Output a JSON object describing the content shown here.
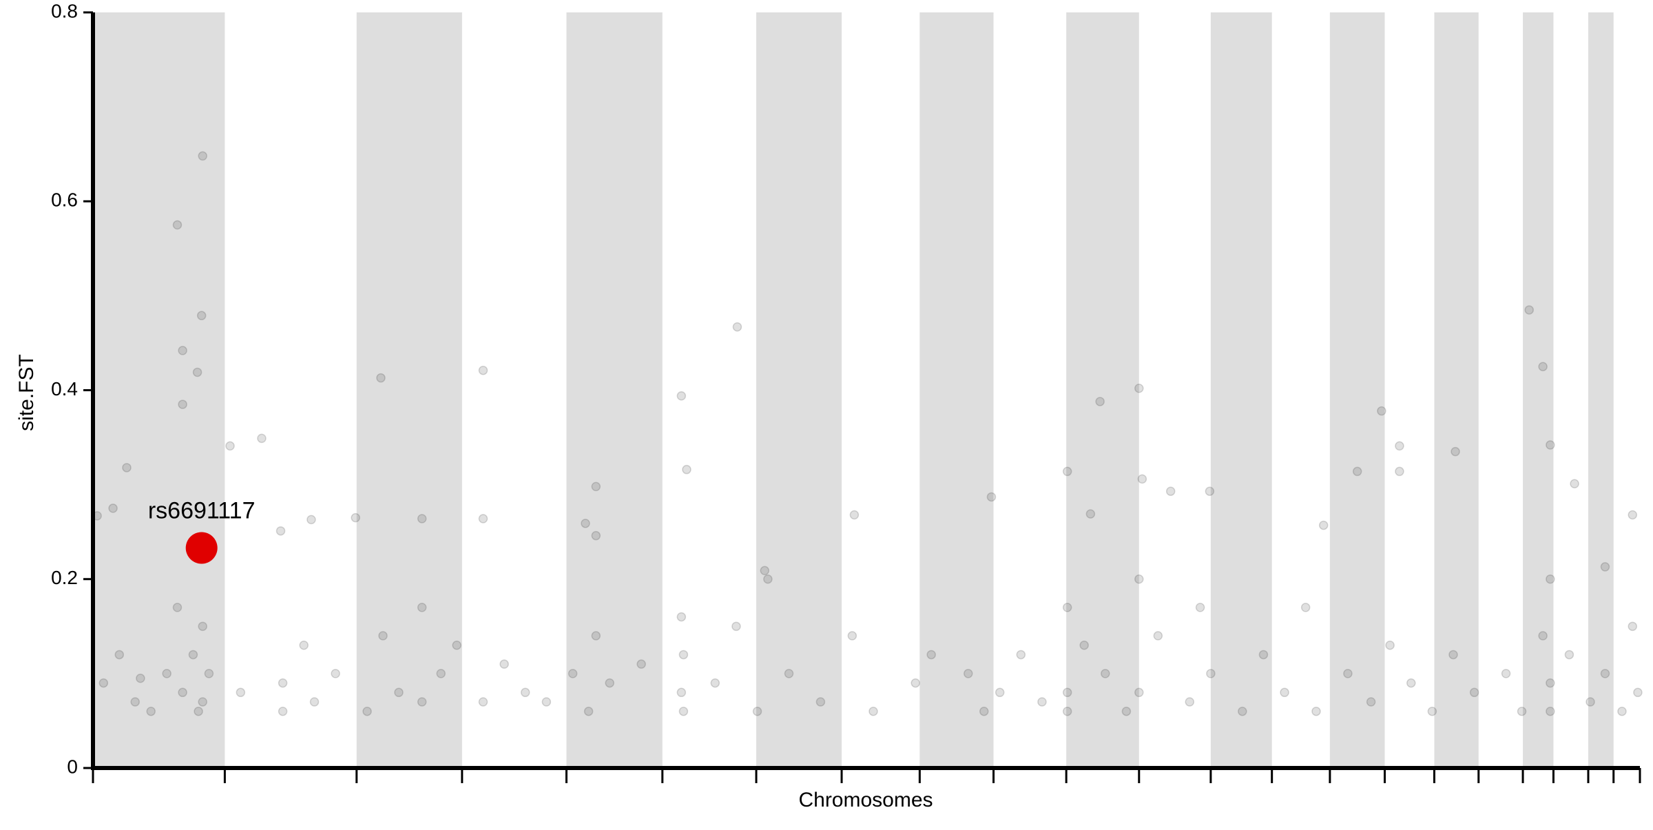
{
  "chart_data": {
    "type": "scatter",
    "ylabel": "site.FST",
    "xlabel": "Chromosomes",
    "ylim": [
      0,
      0.8
    ],
    "yticks": [
      0,
      0.2,
      0.4,
      0.6,
      0.8
    ],
    "xlim": [
      0,
      1467
    ],
    "xticks": [
      0,
      125,
      250,
      350,
      449,
      540,
      629,
      710,
      784,
      854,
      923,
      992,
      1060,
      1118,
      1173,
      1225,
      1272,
      1314,
      1356,
      1385,
      1418,
      1442,
      1467
    ],
    "band_color": "#dedede",
    "color": "#000000",
    "x": [
      80,
      104,
      103,
      85,
      99,
      85,
      32,
      160,
      130,
      273,
      370,
      611,
      558,
      563,
      955,
      992,
      1362,
      1375,
      1382,
      1222,
      1239,
      1292,
      1405,
      477,
      852,
      1059,
      924,
      1199,
      1239,
      178,
      312,
      249,
      370,
      467,
      477,
      722,
      1460,
      4,
      19,
      207,
      1434,
      637,
      1167,
      1022,
      946,
      995,
      10,
      25,
      40,
      45,
      55,
      70,
      80,
      85,
      95,
      100,
      104,
      104,
      110,
      140,
      180,
      180,
      200,
      210,
      230,
      260,
      275,
      290,
      312,
      312,
      330,
      345,
      370,
      390,
      410,
      430,
      455,
      470,
      477,
      490,
      520,
      558,
      558,
      560,
      560,
      590,
      610,
      630,
      640,
      660,
      690,
      720,
      740,
      780,
      795,
      830,
      845,
      860,
      880,
      900,
      924,
      924,
      924,
      940,
      960,
      980,
      992,
      992,
      1010,
      1040,
      1050,
      1060,
      1090,
      1110,
      1130,
      1150,
      1160,
      1190,
      1212,
      1230,
      1250,
      1270,
      1290,
      1310,
      1340,
      1355,
      1375,
      1382,
      1382,
      1382,
      1400,
      1420,
      1434,
      1450,
      1460,
      1465
    ],
    "values": [
      0.575,
      0.648,
      0.479,
      0.442,
      0.419,
      0.385,
      0.318,
      0.349,
      0.341,
      0.413,
      0.421,
      0.467,
      0.394,
      0.316,
      0.388,
      0.402,
      0.485,
      0.425,
      0.342,
      0.378,
      0.341,
      0.335,
      0.301,
      0.298,
      0.287,
      0.293,
      0.314,
      0.314,
      0.314,
      0.251,
      0.264,
      0.265,
      0.264,
      0.259,
      0.246,
      0.268,
      0.268,
      0.267,
      0.275,
      0.263,
      0.213,
      0.209,
      0.257,
      0.293,
      0.269,
      0.306,
      0.09,
      0.12,
      0.07,
      0.095,
      0.06,
      0.1,
      0.17,
      0.08,
      0.12,
      0.06,
      0.15,
      0.07,
      0.1,
      0.08,
      0.09,
      0.06,
      0.13,
      0.07,
      0.1,
      0.06,
      0.14,
      0.08,
      0.17,
      0.07,
      0.1,
      0.13,
      0.07,
      0.11,
      0.08,
      0.07,
      0.1,
      0.06,
      0.14,
      0.09,
      0.11,
      0.16,
      0.08,
      0.06,
      0.12,
      0.09,
      0.15,
      0.06,
      0.2,
      0.1,
      0.07,
      0.14,
      0.06,
      0.09,
      0.12,
      0.1,
      0.06,
      0.08,
      0.12,
      0.07,
      0.17,
      0.08,
      0.06,
      0.13,
      0.1,
      0.06,
      0.2,
      0.08,
      0.14,
      0.07,
      0.17,
      0.1,
      0.06,
      0.12,
      0.08,
      0.17,
      0.06,
      0.1,
      0.07,
      0.13,
      0.09,
      0.06,
      0.12,
      0.08,
      0.1,
      0.06,
      0.14,
      0.09,
      0.06,
      0.2,
      0.12,
      0.07,
      0.1,
      0.06,
      0.15,
      0.08
    ],
    "highlight": {
      "label": "rs6691117",
      "x": 103,
      "value": 0.233,
      "color": "#e00000"
    }
  }
}
